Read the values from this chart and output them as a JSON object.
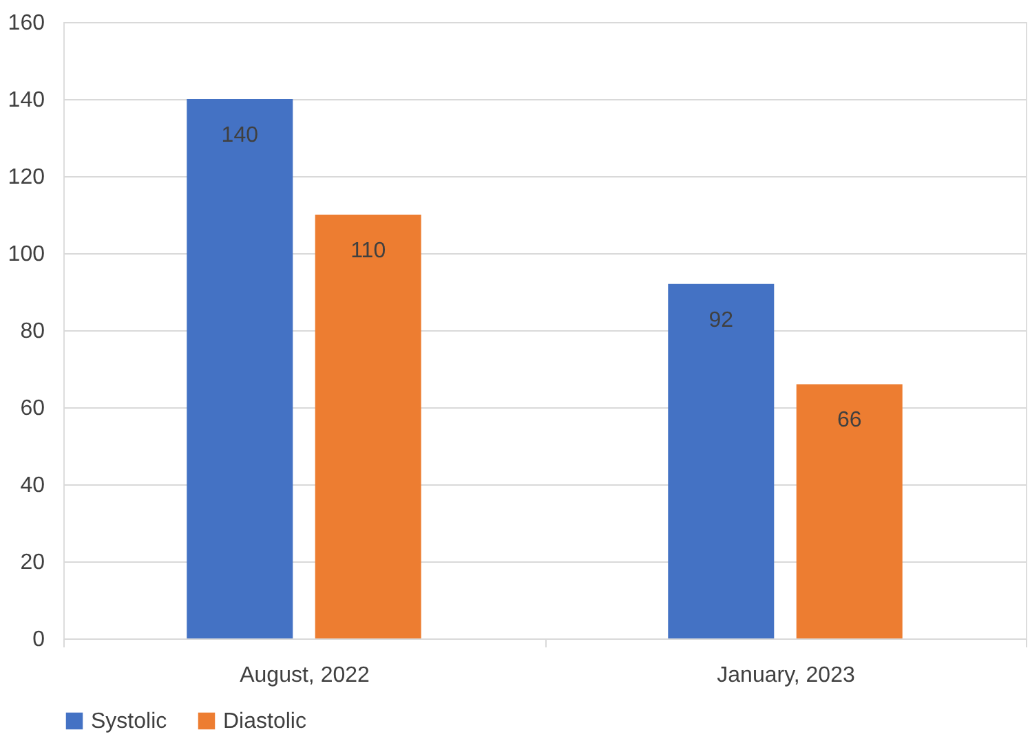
{
  "chart_data": {
    "type": "bar",
    "categories": [
      "August, 2022",
      "January, 2023"
    ],
    "series": [
      {
        "name": "Systolic",
        "color": "#4472c4",
        "values": [
          140,
          92
        ]
      },
      {
        "name": "Diastolic",
        "color": "#ed7d31",
        "values": [
          110,
          66
        ]
      }
    ],
    "ylim": [
      0,
      160
    ],
    "yticks": [
      0,
      20,
      40,
      60,
      80,
      100,
      120,
      140,
      160
    ],
    "grid": "y",
    "legend": "bottom",
    "data_labels": true
  }
}
